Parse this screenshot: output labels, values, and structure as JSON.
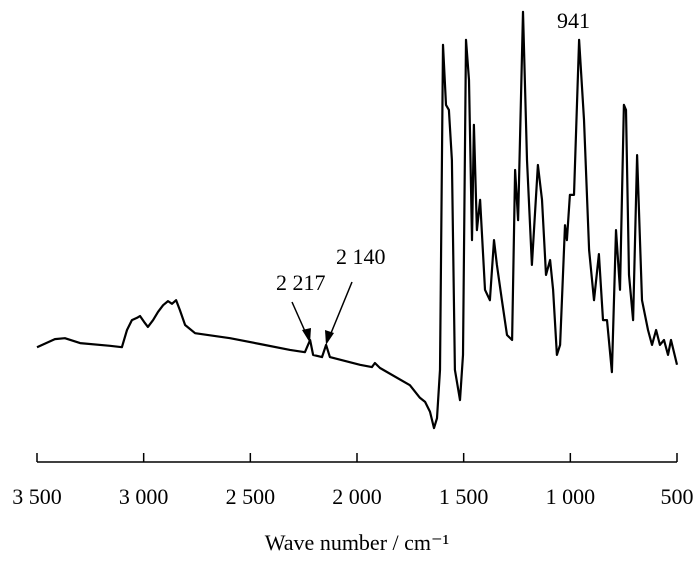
{
  "chart_data": {
    "type": "line",
    "xlabel": "Wave number / cm⁻¹",
    "xlim": [
      3500,
      500
    ],
    "xticks": [
      {
        "value": 3500,
        "label": "3 500"
      },
      {
        "value": 3000,
        "label": "3 000"
      },
      {
        "value": 2500,
        "label": "2 500"
      },
      {
        "value": 2000,
        "label": "2 000"
      },
      {
        "value": 1500,
        "label": "1 500"
      },
      {
        "value": 1000,
        "label": "1 000"
      },
      500
    ],
    "ylim": [
      0,
      100
    ],
    "color": "#000000",
    "annotations": [
      "2 217",
      "2 140",
      "941"
    ],
    "x": [
      3500,
      3416,
      3369,
      3298,
      3158,
      3102,
      3078,
      3055,
      3031,
      3017,
      2998,
      2980,
      2956,
      2933,
      2909,
      2886,
      2867,
      2848,
      2830,
      2806,
      2759,
      2595,
      2455,
      2314,
      2244,
      2220,
      2206,
      2164,
      2145,
      2127,
      1986,
      1930,
      1916,
      1892,
      1752,
      1705,
      1681,
      1658,
      1639,
      1625,
      1611,
      1597,
      1583,
      1569,
      1555,
      1541,
      1517,
      1503,
      1489,
      1475,
      1461,
      1452,
      1438,
      1423,
      1400,
      1377,
      1358,
      1344,
      1321,
      1297,
      1273,
      1259,
      1245,
      1222,
      1203,
      1180,
      1152,
      1133,
      1114,
      1095,
      1081,
      1063,
      1048,
      1025,
      1016,
      1002,
      983,
      959,
      936,
      912,
      889,
      866,
      847,
      828,
      805,
      786,
      767,
      749,
      739,
      725,
      706,
      687,
      664,
      636,
      617,
      598,
      580,
      561,
      542,
      528,
      500
    ],
    "values": [
      25.4,
      27.2,
      27.4,
      26.3,
      25.7,
      25.4,
      29.2,
      31.4,
      31.9,
      32.3,
      31.0,
      29.9,
      31.4,
      33.2,
      34.7,
      35.6,
      35.0,
      35.8,
      33.6,
      30.3,
      28.5,
      27.4,
      26.1,
      24.8,
      24.3,
      27.0,
      23.7,
      23.2,
      25.9,
      23.2,
      21.5,
      21.0,
      21.9,
      20.8,
      17.0,
      14.2,
      13.3,
      11.1,
      7.5,
      9.7,
      20.4,
      92.3,
      79.0,
      77.9,
      66.8,
      20.4,
      13.7,
      23.7,
      93.4,
      84.5,
      49.1,
      74.6,
      51.3,
      58.0,
      38.1,
      35.8,
      49.1,
      43.6,
      35.8,
      28.1,
      27.0,
      64.6,
      53.5,
      99.6,
      66.8,
      43.6,
      65.7,
      58.0,
      41.4,
      44.7,
      38.1,
      23.7,
      25.9,
      52.4,
      49.1,
      59.1,
      59.1,
      93.4,
      75.7,
      46.9,
      35.8,
      46.0,
      31.4,
      31.4,
      19.9,
      51.3,
      38.1,
      79.0,
      77.9,
      41.4,
      31.4,
      67.9,
      35.8,
      29.2,
      25.9,
      29.2,
      25.9,
      27.0,
      23.7,
      27.0,
      21.5
    ]
  }
}
